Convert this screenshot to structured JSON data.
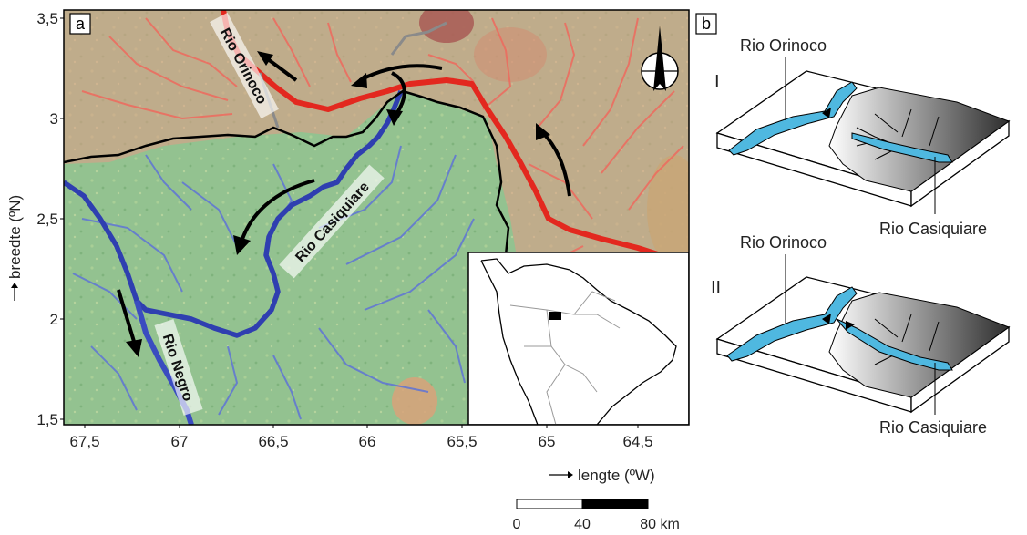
{
  "panel_a": {
    "label": "a",
    "y_axis_label": "breedte (ºN)",
    "x_axis_label": "lengte (ºW)",
    "y_ticks": [
      "3,5",
      "3",
      "2,5",
      "2",
      "1,5"
    ],
    "x_ticks": [
      "67,5",
      "67",
      "66,5",
      "66",
      "65,5",
      "65",
      "64,5"
    ],
    "river_labels": {
      "orinoco": "Rio Orinoco",
      "casiquiare": "Rio Casiquiare",
      "negro": "Rio Negro"
    },
    "colors": {
      "orinoco_river": "#e8322b",
      "amazon_rivers": "#3547b8",
      "lowland": "#8fbf8e",
      "orinoco_basin_tint": "#e88a7a",
      "highland": "#c9b27a",
      "divide": "#000000"
    },
    "north_arrow_icon": "north-arrow-icon"
  },
  "scale_bar": {
    "ticks": [
      "0",
      "40",
      "80 km"
    ]
  },
  "panel_b": {
    "label": "b",
    "stage_1": {
      "roman": "I",
      "orinoco_label": "Rio Orinoco",
      "casiquiare_label": "Rio Casiquiare"
    },
    "stage_2": {
      "roman": "II",
      "orinoco_label": "Rio Orinoco",
      "casiquiare_label": "Rio Casiquiare"
    },
    "colors": {
      "water": "#4fb8e0",
      "block_top": "#ffffff",
      "highland_dark": "#3a3a3a"
    }
  }
}
